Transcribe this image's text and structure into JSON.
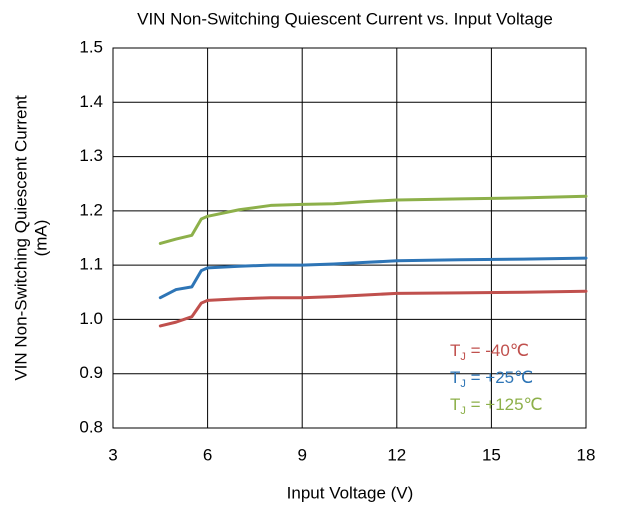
{
  "chart_data": {
    "type": "line",
    "title": "VIN Non-Switching Quiescent Current vs. Input Voltage",
    "x_label": "Input Voltage (V)",
    "y_label": [
      "VIN Non-Switching Quiescent Current",
      "(mA)"
    ],
    "x": [
      4.5,
      5,
      5.5,
      5.8,
      6,
      7,
      8,
      9,
      10,
      11,
      12,
      14,
      16,
      18
    ],
    "series": [
      {
        "name": "TJ = -40℃",
        "color": "#c0504d",
        "values": [
          0.988,
          0.995,
          1.005,
          1.03,
          1.035,
          1.038,
          1.04,
          1.04,
          1.042,
          1.045,
          1.048,
          1.049,
          1.05,
          1.052
        ]
      },
      {
        "name": "TJ = +25℃",
        "color": "#2e75b6",
        "values": [
          1.04,
          1.055,
          1.06,
          1.09,
          1.095,
          1.098,
          1.1,
          1.1,
          1.102,
          1.105,
          1.108,
          1.11,
          1.111,
          1.113
        ]
      },
      {
        "name": "TJ = +125℃",
        "color": "#8db04a",
        "values": [
          1.14,
          1.148,
          1.155,
          1.185,
          1.19,
          1.202,
          1.21,
          1.212,
          1.213,
          1.217,
          1.22,
          1.222,
          1.224,
          1.227
        ]
      }
    ],
    "xlim": [
      3,
      18
    ],
    "xticks": [
      3,
      6,
      9,
      12,
      15,
      18
    ],
    "ylim": [
      0.8,
      1.5
    ],
    "yticks": [
      0.8,
      0.9,
      {
        "value": 1,
        "label": "1.0"
      },
      1.1,
      1.2,
      1.3,
      1.4,
      1.5
    ],
    "grid": true,
    "legend": "lower right"
  }
}
